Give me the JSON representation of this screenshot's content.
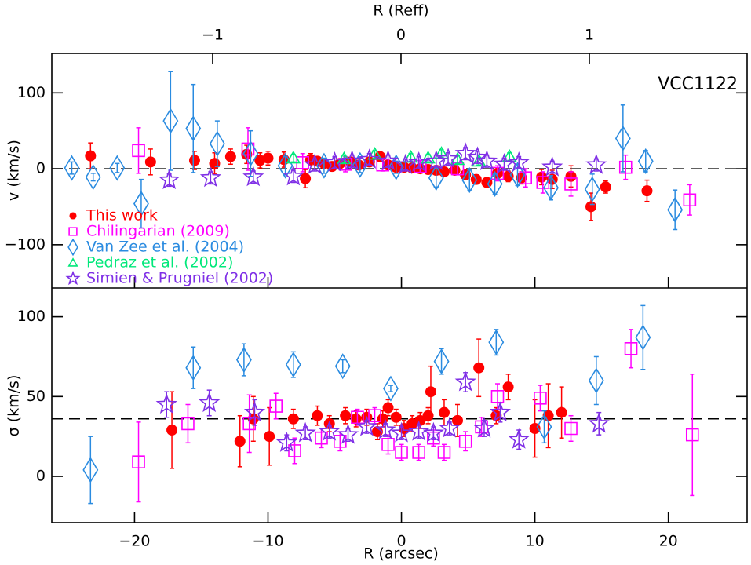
{
  "chart_data": [
    {
      "type": "scatter",
      "x2label": "R (Reff)",
      "x2lim": [
        -1.854,
        1.8375
      ],
      "x2ticks": [
        {
          "value": -1,
          "label": "−1"
        },
        0,
        1
      ],
      "ylabel": "v (km/s)",
      "ylim": [
        -157,
        152
      ],
      "yticks": [
        {
          "value": -100,
          "label": "−100"
        },
        0,
        100
      ],
      "hline": 0,
      "annotation": "VCC1122",
      "legend": "lower left",
      "series": [
        {
          "name": "This work",
          "color": "#ff0000",
          "marker": "circle",
          "x": [
            -23.3,
            -18.8,
            -15.5,
            -14,
            -12.8,
            -11.6,
            -10.6,
            -10,
            -8.8,
            -7.2,
            -6.8,
            -6.3,
            -5.8,
            -5.2,
            -4.6,
            -3.8,
            -3.2,
            -2.4,
            -1.6,
            -1,
            -0.4,
            0.2,
            0.8,
            1.4,
            2,
            2.6,
            3.2,
            4,
            4.8,
            5.6,
            6.4,
            7.2,
            8,
            9,
            10.5,
            11.3,
            12.7,
            14.2,
            15.3,
            18.4
          ],
          "values": [
            17,
            9,
            11,
            7,
            16,
            19,
            11,
            14,
            12,
            -13,
            12,
            10,
            7,
            3,
            7,
            9,
            5,
            9,
            16,
            5,
            2,
            2,
            1,
            0,
            -1,
            -2,
            -4,
            -2,
            -8,
            -14,
            -18,
            -6,
            -10,
            -12,
            -11,
            -14,
            -10,
            -50,
            -24,
            -29
          ],
          "errors": [
            17,
            17,
            12,
            14,
            10,
            12,
            10,
            9,
            10,
            12,
            8,
            6,
            6,
            6,
            6,
            6,
            5,
            5,
            6,
            5,
            5,
            5,
            5,
            5,
            5,
            5,
            5,
            5,
            6,
            6,
            6,
            6,
            7,
            8,
            10,
            12,
            14,
            18,
            8,
            14
          ]
        },
        {
          "name": "Chilingarian (2009)",
          "color": "#ff00ff",
          "marker": "square",
          "x": [
            -19.7,
            -11.5,
            -7.4,
            -4.2,
            -1.4,
            1.4,
            4.2,
            7.2,
            9.3,
            10.6,
            12.7,
            16.8,
            21.6
          ],
          "values": [
            24,
            26,
            8,
            6,
            5,
            3,
            0,
            -6,
            -12,
            -18,
            -20,
            2,
            -41
          ],
          "errors": [
            30,
            28,
            12,
            10,
            8,
            8,
            8,
            10,
            12,
            14,
            16,
            16,
            20
          ]
        },
        {
          "name": "Van Zee et al. (2004)",
          "color": "#2a8be0",
          "marker": "diamond",
          "x": [
            -24.7,
            -23.1,
            -21.3,
            -19.5,
            -17.3,
            -15.6,
            -13.8,
            -11.3,
            -8.7,
            -5.8,
            -3.1,
            -0.4,
            2.6,
            5.1,
            7,
            8.7,
            11.2,
            14.3,
            16.6,
            18.3,
            20.5
          ],
          "values": [
            1,
            -11,
            1,
            -46,
            63,
            53,
            33,
            20,
            4,
            4,
            5,
            2,
            -12,
            -15,
            -20,
            -8,
            -25,
            -27,
            40,
            10,
            -54
          ],
          "errors": [
            8,
            5,
            6,
            32,
            65,
            58,
            30,
            30,
            12,
            10,
            10,
            8,
            12,
            14,
            14,
            14,
            16,
            20,
            44,
            14,
            26
          ]
        },
        {
          "name": "Pedraz et al. (2002)",
          "color": "#00e87a",
          "marker": "triangle",
          "x": [
            -8.1,
            -4.3,
            -2,
            0.7,
            2,
            3,
            4.2,
            5.8,
            8.1
          ],
          "values": [
            14,
            13,
            19,
            15,
            14,
            20,
            12,
            10,
            16
          ],
          "errors": [
            5,
            5,
            5,
            5,
            5,
            5,
            5,
            5,
            5
          ]
        },
        {
          "name": "Simien & Prugniel (2002)",
          "color": "#7f2fe6",
          "marker": "star",
          "x": [
            -17.4,
            -14.3,
            -11.1,
            -8.1,
            -6.5,
            -5,
            -3.7,
            -2.4,
            -1,
            0.3,
            1.3,
            2.6,
            3.5,
            4.8,
            5.7,
            6.4,
            7.7,
            8.8,
            11.3,
            14.6
          ],
          "values": [
            -15,
            -12,
            -11,
            -10,
            5,
            8,
            10,
            12,
            10,
            5,
            8,
            10,
            13,
            20,
            15,
            10,
            6,
            8,
            2,
            5
          ],
          "errors": [
            8,
            8,
            8,
            8,
            8,
            8,
            8,
            8,
            8,
            8,
            8,
            8,
            8,
            8,
            8,
            8,
            8,
            8,
            8,
            8
          ]
        }
      ]
    },
    {
      "type": "scatter",
      "xlabel": "R (arcsec)",
      "xlim": [
        -26.2,
        25.9
      ],
      "xticks": [
        {
          "value": -20,
          "label": "−20"
        },
        {
          "value": -10,
          "label": "−10"
        },
        0,
        10,
        20
      ],
      "ylabel": "σ (km/s)",
      "ylim": [
        -29,
        118
      ],
      "yticks": [
        0,
        50,
        100
      ],
      "hline": 36,
      "series": [
        {
          "color": "#ff0000",
          "marker": "circle",
          "x": [
            -17.2,
            -12.1,
            -11.1,
            -9.9,
            -8.1,
            -6.3,
            -5.4,
            -4.2,
            -3.4,
            -2.6,
            -1.8,
            -1.4,
            -1,
            -0.4,
            0.2,
            0.8,
            1.4,
            2,
            2.2,
            3.2,
            4.2,
            5.8,
            7.1,
            8,
            10,
            11,
            12
          ],
          "values": [
            29,
            22,
            36,
            25,
            36,
            38,
            33,
            38,
            36,
            37,
            28,
            36,
            43,
            37,
            30,
            33,
            35,
            38,
            53,
            40,
            35,
            68,
            38,
            56,
            30,
            38,
            40
          ],
          "errors": [
            24,
            16,
            14,
            18,
            6,
            6,
            5,
            5,
            5,
            5,
            5,
            5,
            5,
            5,
            5,
            5,
            5,
            5,
            16,
            8,
            10,
            18,
            5,
            8,
            18,
            20,
            16
          ]
        },
        {
          "color": "#ff00ff",
          "marker": "square",
          "x": [
            -19.7,
            -16,
            -11.4,
            -9.4,
            -8,
            -6,
            -4.6,
            -3.3,
            -2,
            -1,
            0,
            1.3,
            2.4,
            3.2,
            4.8,
            6,
            7.2,
            10.4,
            12.7,
            17.2,
            21.8
          ],
          "values": [
            9,
            33,
            33,
            44,
            16,
            24,
            22,
            37,
            38,
            20,
            15,
            15,
            24,
            15,
            22,
            31,
            50,
            49,
            30,
            80,
            26
          ],
          "errors": [
            25,
            12,
            18,
            8,
            8,
            6,
            6,
            5,
            5,
            6,
            5,
            5,
            5,
            5,
            6,
            6,
            8,
            8,
            8,
            12,
            38
          ]
        },
        {
          "color": "#2a8be0",
          "marker": "diamond",
          "x": [
            -23.3,
            -15.6,
            -11.8,
            -8.1,
            -4.4,
            -0.8,
            3,
            7.1,
            10.7,
            14.6,
            18.1
          ],
          "values": [
            4,
            68,
            73,
            70,
            69,
            55,
            72,
            84,
            31,
            60,
            87
          ],
          "errors": [
            21,
            13,
            10,
            8,
            4,
            2,
            8,
            8,
            10,
            15,
            20
          ]
        },
        {
          "color": "#7f2fe6",
          "marker": "star",
          "x": [
            -17.6,
            -14.4,
            -11,
            -8.6,
            -7.2,
            -5.4,
            -4,
            -2.6,
            -1.2,
            0,
            1.3,
            2.4,
            3.6,
            4.8,
            6.2,
            7.4,
            8.8,
            14.8
          ],
          "values": [
            45,
            46,
            40,
            21,
            27,
            28,
            26,
            31,
            29,
            27,
            28,
            27,
            30,
            59,
            30,
            40,
            23,
            33
          ],
          "errors": [
            8,
            8,
            8,
            5,
            4,
            4,
            4,
            4,
            4,
            4,
            4,
            4,
            4,
            6,
            5,
            6,
            6,
            7
          ]
        }
      ]
    }
  ]
}
